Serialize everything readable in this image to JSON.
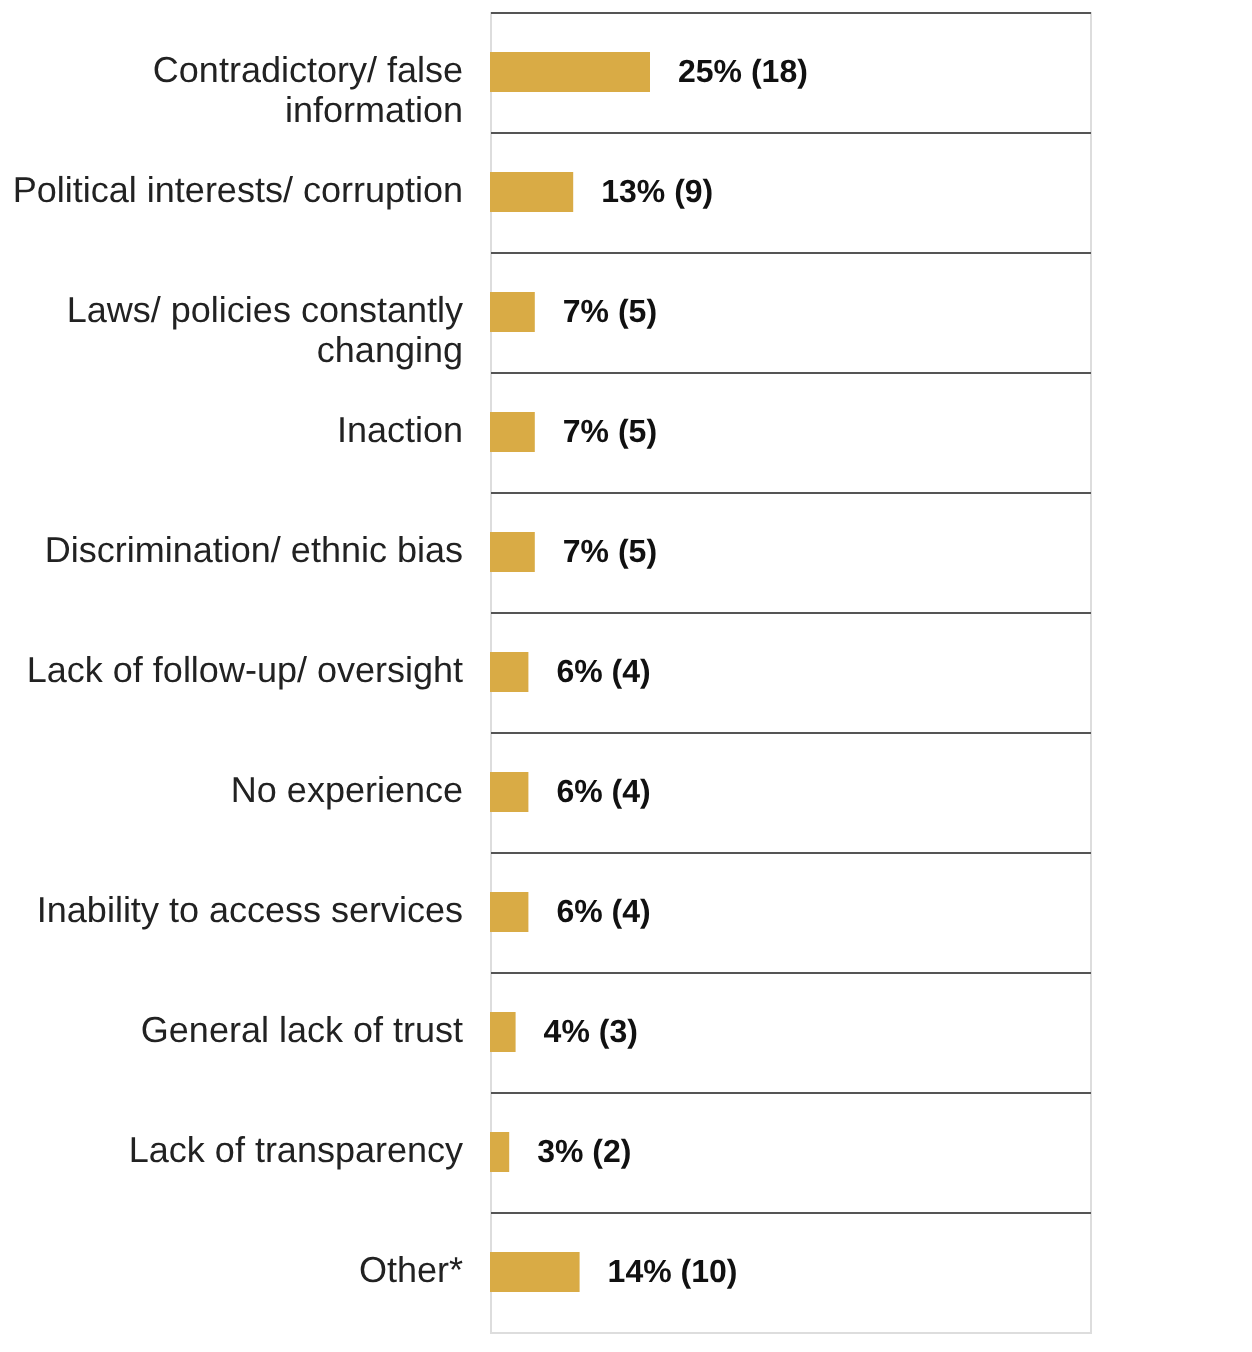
{
  "chart_data": {
    "type": "bar",
    "orientation": "horizontal",
    "categories": [
      "Contradictory/ false information",
      "Political interests/ corruption",
      "Laws/ policies constantly changing",
      "Inaction",
      "Discrimination/ ethnic bias",
      "Lack of follow-up/ oversight",
      "No experience",
      "Inability to access services",
      "General lack of trust",
      "Lack of transparency",
      "Other*"
    ],
    "values": [
      25,
      13,
      7,
      7,
      7,
      6,
      6,
      6,
      4,
      3,
      14
    ],
    "value_labels": [
      "25% (18)",
      "13% (9)",
      "7% (5)",
      "7% (5)",
      "7% (5)",
      "6% (4)",
      "6% (4)",
      "6% (4)",
      "4% (3)",
      "3% (2)",
      "14% (10)"
    ],
    "color": "#d9ab45",
    "grid": "y"
  }
}
